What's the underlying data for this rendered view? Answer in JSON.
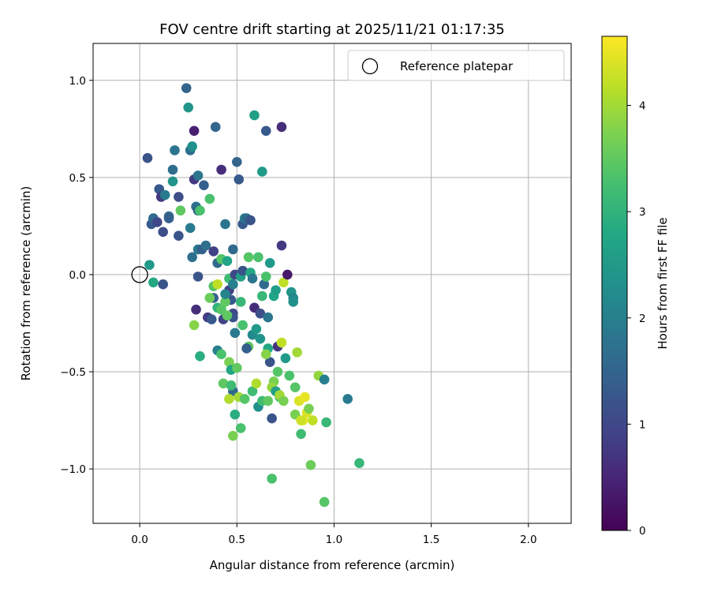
{
  "chart_data": {
    "type": "scatter",
    "title": "FOV centre drift starting at 2025/11/21 01:17:35",
    "xlabel": "Angular distance from reference (arcmin)",
    "ylabel": "Rotation from reference (arcmin)",
    "xlim": [
      -0.24,
      2.22
    ],
    "ylim": [
      -1.28,
      1.19
    ],
    "xticks": [
      0.0,
      0.5,
      1.0,
      1.5,
      2.0
    ],
    "xtick_labels": [
      "0.0",
      "0.5",
      "1.0",
      "1.5",
      "2.0"
    ],
    "yticks": [
      -1.0,
      -0.5,
      0.0,
      0.5,
      1.0
    ],
    "ytick_labels": [
      "−1.0",
      "−0.5",
      "0.0",
      "0.5",
      "1.0"
    ],
    "grid": true,
    "legend": {
      "location": "top-right",
      "entries": [
        "Reference platepar"
      ]
    },
    "reference_point": {
      "x": 0.0,
      "y": 0.0
    },
    "colorbar": {
      "label": "Hours from first FF file",
      "colormap": "viridis",
      "range": [
        0,
        4.65
      ],
      "ticks": [
        0,
        1,
        2,
        3,
        4
      ],
      "tick_labels": [
        "0",
        "1",
        "2",
        "3",
        "4"
      ]
    },
    "points": [
      [
        0.04,
        0.6,
        1.2
      ],
      [
        0.06,
        0.26,
        1.3
      ],
      [
        0.07,
        0.29,
        1.6
      ],
      [
        0.09,
        0.27,
        1.0
      ],
      [
        0.1,
        0.44,
        1.3
      ],
      [
        0.11,
        0.4,
        0.8
      ],
      [
        0.12,
        0.22,
        1.1
      ],
      [
        0.13,
        0.41,
        1.9
      ],
      [
        0.15,
        0.3,
        1.6
      ],
      [
        0.15,
        0.29,
        1.4
      ],
      [
        0.17,
        0.54,
        1.7
      ],
      [
        0.17,
        0.48,
        2.4
      ],
      [
        0.18,
        0.64,
        1.8
      ],
      [
        0.2,
        0.4,
        1.1
      ],
      [
        0.2,
        0.2,
        1.2
      ],
      [
        0.21,
        0.33,
        3.5
      ],
      [
        0.24,
        0.96,
        1.5
      ],
      [
        0.25,
        0.86,
        2.4
      ],
      [
        0.26,
        0.24,
        1.9
      ],
      [
        0.26,
        0.64,
        1.7
      ],
      [
        0.27,
        0.66,
        2.3
      ],
      [
        0.27,
        0.09,
        1.7
      ],
      [
        0.28,
        0.74,
        0.4
      ],
      [
        0.28,
        0.49,
        0.8
      ],
      [
        0.29,
        0.35,
        1.7
      ],
      [
        0.3,
        0.51,
        1.8
      ],
      [
        0.3,
        0.33,
        1.5
      ],
      [
        0.31,
        0.33,
        3.3
      ],
      [
        0.3,
        0.13,
        1.9
      ],
      [
        0.32,
        0.13,
        1.4
      ],
      [
        0.33,
        0.46,
        1.4
      ],
      [
        0.34,
        0.15,
        1.7
      ],
      [
        0.36,
        0.39,
        3.3
      ],
      [
        0.38,
        -0.12,
        1.4
      ],
      [
        0.38,
        0.12,
        0.9
      ],
      [
        0.39,
        0.76,
        1.5
      ],
      [
        0.4,
        0.06,
        1.6
      ],
      [
        0.4,
        -0.39,
        2.0
      ],
      [
        0.42,
        0.54,
        0.6
      ],
      [
        0.42,
        0.08,
        3.4
      ],
      [
        0.44,
        0.26,
        1.8
      ],
      [
        0.45,
        0.07,
        2.7
      ],
      [
        0.46,
        -0.08,
        0.9
      ],
      [
        0.46,
        -0.02,
        3.2
      ],
      [
        0.47,
        -0.13,
        1.3
      ],
      [
        0.48,
        -0.05,
        2.0
      ],
      [
        0.48,
        0.13,
        1.6
      ],
      [
        0.48,
        -0.2,
        1.0
      ],
      [
        0.48,
        -0.22,
        1.2
      ],
      [
        0.49,
        -0.3,
        1.9
      ],
      [
        0.49,
        0.0,
        1.0
      ],
      [
        0.5,
        0.58,
        1.5
      ],
      [
        0.51,
        0.49,
        1.3
      ],
      [
        0.52,
        -0.01,
        2.6
      ],
      [
        0.53,
        0.02,
        1.2
      ],
      [
        0.53,
        0.26,
        1.3
      ],
      [
        0.54,
        0.29,
        2.0
      ],
      [
        0.55,
        0.29,
        1.6
      ],
      [
        0.56,
        0.09,
        3.4
      ],
      [
        0.56,
        -0.37,
        3.5
      ],
      [
        0.57,
        0.28,
        1.2
      ],
      [
        0.57,
        0.01,
        2.8
      ],
      [
        0.58,
        -0.31,
        2.2
      ],
      [
        0.58,
        -0.02,
        1.8
      ],
      [
        0.59,
        0.82,
        2.6
      ],
      [
        0.59,
        -0.17,
        0.6
      ],
      [
        0.6,
        -0.28,
        2.5
      ],
      [
        0.61,
        0.09,
        3.3
      ],
      [
        0.62,
        -0.2,
        1.1
      ],
      [
        0.62,
        -0.33,
        2.4
      ],
      [
        0.63,
        0.53,
        2.5
      ],
      [
        0.63,
        -0.11,
        3.1
      ],
      [
        0.64,
        -0.05,
        1.6
      ],
      [
        0.65,
        0.74,
        1.3
      ],
      [
        0.65,
        -0.01,
        3.3
      ],
      [
        0.66,
        -0.22,
        1.8
      ],
      [
        0.66,
        -0.38,
        2.8
      ],
      [
        0.67,
        0.06,
        2.5
      ],
      [
        0.67,
        -0.45,
        1.2
      ],
      [
        0.68,
        -0.74,
        1.2
      ],
      [
        0.68,
        -1.05,
        3.3
      ],
      [
        0.69,
        -0.11,
        2.7
      ],
      [
        0.69,
        -0.55,
        3.7
      ],
      [
        0.7,
        -0.08,
        2.6
      ],
      [
        0.71,
        -0.37,
        0.7
      ],
      [
        0.71,
        -0.5,
        3.4
      ],
      [
        0.72,
        -0.63,
        3.3
      ],
      [
        0.73,
        0.76,
        0.6
      ],
      [
        0.73,
        0.15,
        0.8
      ],
      [
        0.73,
        -0.35,
        4.2
      ],
      [
        0.74,
        -0.04,
        4.2
      ],
      [
        0.75,
        -0.43,
        2.5
      ],
      [
        0.76,
        0.0,
        0.3
      ],
      [
        0.77,
        -0.52,
        4.4
      ],
      [
        0.78,
        -0.09,
        2.4
      ],
      [
        0.79,
        -0.12,
        2.1
      ],
      [
        0.79,
        -0.14,
        2.3
      ],
      [
        0.8,
        -0.72,
        3.7
      ],
      [
        0.81,
        -0.4,
        4.0
      ],
      [
        0.82,
        -0.65,
        4.4
      ],
      [
        0.83,
        -0.82,
        3.2
      ],
      [
        0.84,
        -0.75,
        4.5
      ],
      [
        0.85,
        -0.63,
        4.5
      ],
      [
        0.86,
        -0.71,
        4.4
      ],
      [
        0.87,
        -0.69,
        3.7
      ],
      [
        0.88,
        -0.98,
        3.6
      ],
      [
        0.89,
        -0.75,
        4.2
      ],
      [
        0.92,
        -0.52,
        3.9
      ],
      [
        0.95,
        -0.54,
        2.0
      ],
      [
        0.95,
        -1.17,
        3.4
      ],
      [
        0.96,
        -0.76,
        3.1
      ],
      [
        1.07,
        -0.64,
        1.9
      ],
      [
        1.13,
        -0.97,
        3.1
      ],
      [
        0.05,
        0.05,
        2.5
      ],
      [
        0.07,
        -0.04,
        2.8
      ],
      [
        0.12,
        -0.05,
        1.2
      ],
      [
        0.28,
        -0.26,
        3.8
      ],
      [
        0.29,
        -0.18,
        0.6
      ],
      [
        0.3,
        -0.01,
        1.2
      ],
      [
        0.31,
        -0.42,
        2.9
      ],
      [
        0.35,
        -0.22,
        0.8
      ],
      [
        0.37,
        -0.23,
        1.3
      ],
      [
        0.38,
        -0.06,
        3.4
      ],
      [
        0.4,
        -0.17,
        3.0
      ],
      [
        0.42,
        -0.18,
        3.4
      ],
      [
        0.43,
        -0.23,
        0.9
      ],
      [
        0.44,
        -0.14,
        3.5
      ],
      [
        0.45,
        -0.21,
        3.5
      ],
      [
        0.46,
        -0.45,
        3.7
      ],
      [
        0.47,
        -0.49,
        2.7
      ],
      [
        0.48,
        -0.6,
        1.6
      ],
      [
        0.49,
        -0.72,
        2.9
      ],
      [
        0.5,
        -0.48,
        3.5
      ],
      [
        0.51,
        -0.63,
        4.0
      ],
      [
        0.52,
        -0.14,
        3.1
      ],
      [
        0.53,
        -0.26,
        3.3
      ],
      [
        0.55,
        -0.38,
        1.4
      ],
      [
        0.58,
        -0.6,
        3.2
      ],
      [
        0.6,
        -0.56,
        4.1
      ],
      [
        0.61,
        -0.68,
        2.3
      ],
      [
        0.63,
        -0.65,
        3.2
      ],
      [
        0.65,
        -0.41,
        3.8
      ],
      [
        0.66,
        -0.65,
        3.5
      ],
      [
        0.68,
        -0.58,
        3.9
      ],
      [
        0.7,
        -0.6,
        2.6
      ],
      [
        0.72,
        -0.62,
        4.0
      ],
      [
        0.74,
        -0.65,
        3.7
      ],
      [
        0.77,
        -0.52,
        3.3
      ],
      [
        0.8,
        -0.58,
        3.4
      ],
      [
        0.83,
        -0.75,
        4.3
      ],
      [
        0.43,
        -0.56,
        3.5
      ],
      [
        0.46,
        -0.64,
        4.1
      ],
      [
        0.47,
        -0.57,
        3.2
      ],
      [
        0.48,
        -0.83,
        3.7
      ],
      [
        0.52,
        -0.79,
        3.3
      ],
      [
        0.54,
        -0.64,
        3.4
      ],
      [
        0.4,
        -0.05,
        4.2
      ],
      [
        0.44,
        -0.1,
        2.1
      ],
      [
        0.36,
        -0.12,
        3.6
      ],
      [
        0.42,
        -0.41,
        3.3
      ]
    ]
  }
}
